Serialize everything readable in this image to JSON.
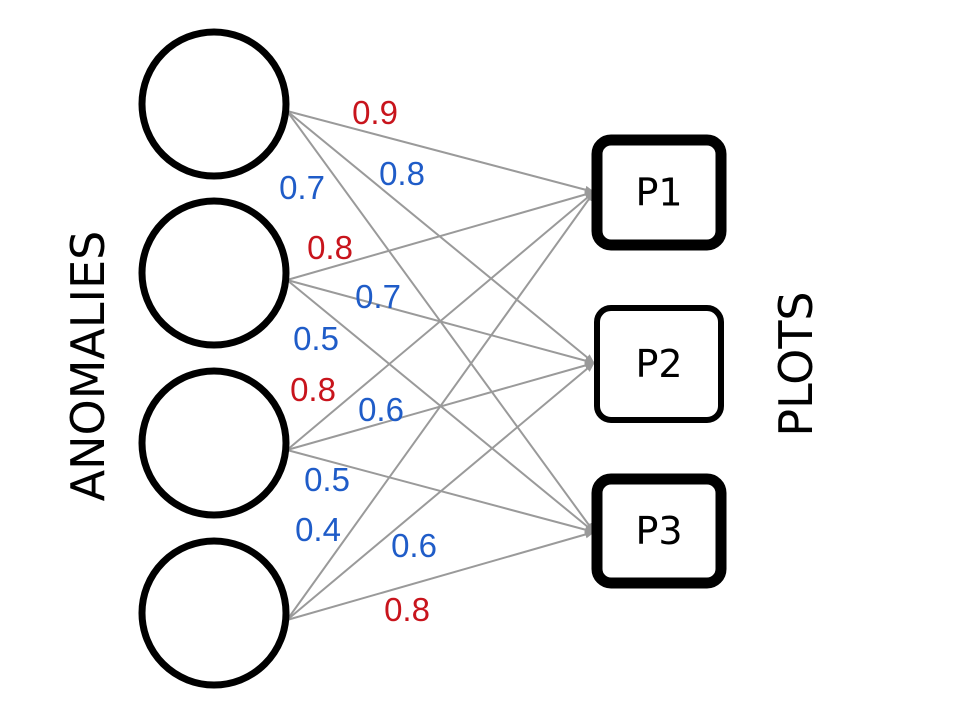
{
  "left_label": "ANOMALIES",
  "right_label": "PLOTS",
  "colors": {
    "edge": "#9a9a9a",
    "strong_weight": "#c8141c",
    "weak_weight": "#1f5cc8",
    "node_stroke": "#000000"
  },
  "anomalies": [
    {
      "id": "a1"
    },
    {
      "id": "a2"
    },
    {
      "id": "a3"
    },
    {
      "id": "a4"
    }
  ],
  "plots": [
    {
      "id": "p1",
      "label": "P1",
      "border": "thick"
    },
    {
      "id": "p2",
      "label": "P2",
      "border": "thin"
    },
    {
      "id": "p3",
      "label": "P3",
      "border": "thick"
    }
  ],
  "edges": [
    {
      "from": "a1",
      "to": "p1"
    },
    {
      "from": "a1",
      "to": "p2"
    },
    {
      "from": "a1",
      "to": "p3"
    },
    {
      "from": "a2",
      "to": "p1"
    },
    {
      "from": "a2",
      "to": "p2"
    },
    {
      "from": "a2",
      "to": "p3"
    },
    {
      "from": "a3",
      "to": "p1"
    },
    {
      "from": "a3",
      "to": "p2"
    },
    {
      "from": "a3",
      "to": "p3"
    },
    {
      "from": "a4",
      "to": "p1"
    },
    {
      "from": "a4",
      "to": "p2"
    },
    {
      "from": "a4",
      "to": "p3"
    }
  ],
  "weights": [
    {
      "text": "0.9",
      "color": "strong"
    },
    {
      "text": "0.8",
      "color": "weak"
    },
    {
      "text": "0.7",
      "color": "weak"
    },
    {
      "text": "0.8",
      "color": "strong"
    },
    {
      "text": "0.7",
      "color": "weak"
    },
    {
      "text": "0.5",
      "color": "weak"
    },
    {
      "text": "0.8",
      "color": "strong"
    },
    {
      "text": "0.6",
      "color": "weak"
    },
    {
      "text": "0.5",
      "color": "weak"
    },
    {
      "text": "0.4",
      "color": "weak"
    },
    {
      "text": "0.6",
      "color": "weak"
    },
    {
      "text": "0.8",
      "color": "strong"
    }
  ]
}
